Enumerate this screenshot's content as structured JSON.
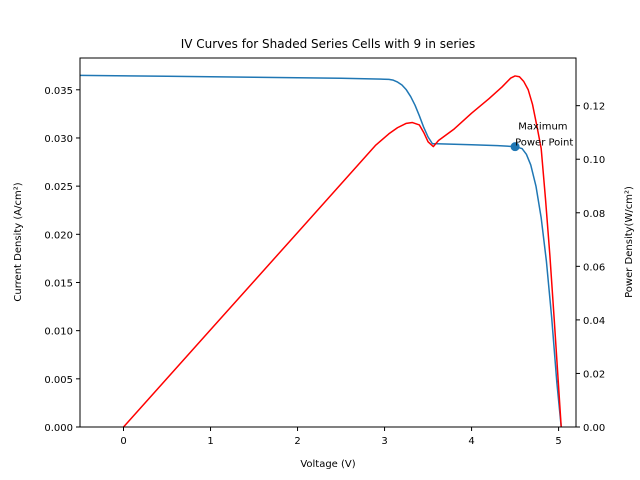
{
  "chart_data": {
    "type": "line",
    "title": "IV Curves for Shaded Series Cells with 9 in series",
    "xlabel": "Voltage (V)",
    "ylabel_left": "Current Density (A/cm²)",
    "ylabel_right": "Power Density(W/cm²)",
    "xlim": [
      -0.5,
      5.2
    ],
    "ylim_left": [
      0,
      0.0383
    ],
    "ylim_right": [
      0,
      0.1378
    ],
    "x_ticks": [
      0,
      1,
      2,
      3,
      4,
      5
    ],
    "x_tick_labels": [
      "0",
      "1",
      "2",
      "3",
      "4",
      "5"
    ],
    "y_left_ticks": [
      0.0,
      0.005,
      0.01,
      0.015,
      0.02,
      0.025,
      0.03,
      0.035
    ],
    "y_left_tick_labels": [
      "0.000",
      "0.005",
      "0.010",
      "0.015",
      "0.020",
      "0.025",
      "0.030",
      "0.035"
    ],
    "y_right_ticks": [
      0.0,
      0.02,
      0.04,
      0.06,
      0.08,
      0.1,
      0.12
    ],
    "y_right_tick_labels": [
      "0.00",
      "0.02",
      "0.04",
      "0.06",
      "0.08",
      "0.10",
      "0.12"
    ],
    "grid": false,
    "series": [
      {
        "axis": "left",
        "color": "#1f77b4",
        "points": [
          [
            -0.5,
            0.0365
          ],
          [
            0.5,
            0.0364
          ],
          [
            1.5,
            0.0363
          ],
          [
            2.5,
            0.0362
          ],
          [
            3.0,
            0.0361
          ],
          [
            3.05,
            0.03608
          ],
          [
            3.1,
            0.036
          ],
          [
            3.15,
            0.0358
          ],
          [
            3.2,
            0.0355
          ],
          [
            3.25,
            0.035
          ],
          [
            3.3,
            0.0343
          ],
          [
            3.35,
            0.0334
          ],
          [
            3.4,
            0.0323
          ],
          [
            3.45,
            0.0311
          ],
          [
            3.5,
            0.0301
          ],
          [
            3.55,
            0.0294
          ],
          [
            3.6,
            0.0294
          ],
          [
            4.0,
            0.0293
          ],
          [
            4.3,
            0.0292
          ],
          [
            4.5,
            0.0291
          ],
          [
            4.58,
            0.0289
          ],
          [
            4.63,
            0.0283
          ],
          [
            4.68,
            0.0272
          ],
          [
            4.74,
            0.025
          ],
          [
            4.8,
            0.0217
          ],
          [
            4.86,
            0.0172
          ],
          [
            4.92,
            0.0114
          ],
          [
            4.98,
            0.0046
          ],
          [
            5.03,
            0.0
          ]
        ]
      },
      {
        "axis": "right",
        "color": "#ff0000",
        "points": [
          [
            0.0,
            0.0
          ],
          [
            1.0,
            0.0363
          ],
          [
            2.0,
            0.0726
          ],
          [
            2.9,
            0.1053
          ],
          [
            3.05,
            0.1095
          ],
          [
            3.15,
            0.1118
          ],
          [
            3.25,
            0.1134
          ],
          [
            3.32,
            0.1137
          ],
          [
            3.4,
            0.1128
          ],
          [
            3.45,
            0.11
          ],
          [
            3.5,
            0.1065
          ],
          [
            3.56,
            0.1047
          ],
          [
            3.62,
            0.107
          ],
          [
            3.8,
            0.1113
          ],
          [
            4.0,
            0.1172
          ],
          [
            4.2,
            0.1226
          ],
          [
            4.35,
            0.127
          ],
          [
            4.45,
            0.1303
          ],
          [
            4.5,
            0.1311
          ],
          [
            4.55,
            0.1308
          ],
          [
            4.6,
            0.129
          ],
          [
            4.65,
            0.126
          ],
          [
            4.7,
            0.1205
          ],
          [
            4.75,
            0.1125
          ],
          [
            4.8,
            0.104
          ],
          [
            4.85,
            0.085
          ],
          [
            4.9,
            0.064
          ],
          [
            4.95,
            0.04
          ],
          [
            5.0,
            0.015
          ],
          [
            5.03,
            0.0
          ]
        ]
      }
    ],
    "marker": {
      "x": 4.5,
      "y": 0.0291,
      "axis": "left",
      "color": "#1f77b4"
    },
    "annotation": {
      "lines": [
        " Maximum",
        "Power Point"
      ],
      "x": 4.5,
      "y": 0.0291
    }
  }
}
